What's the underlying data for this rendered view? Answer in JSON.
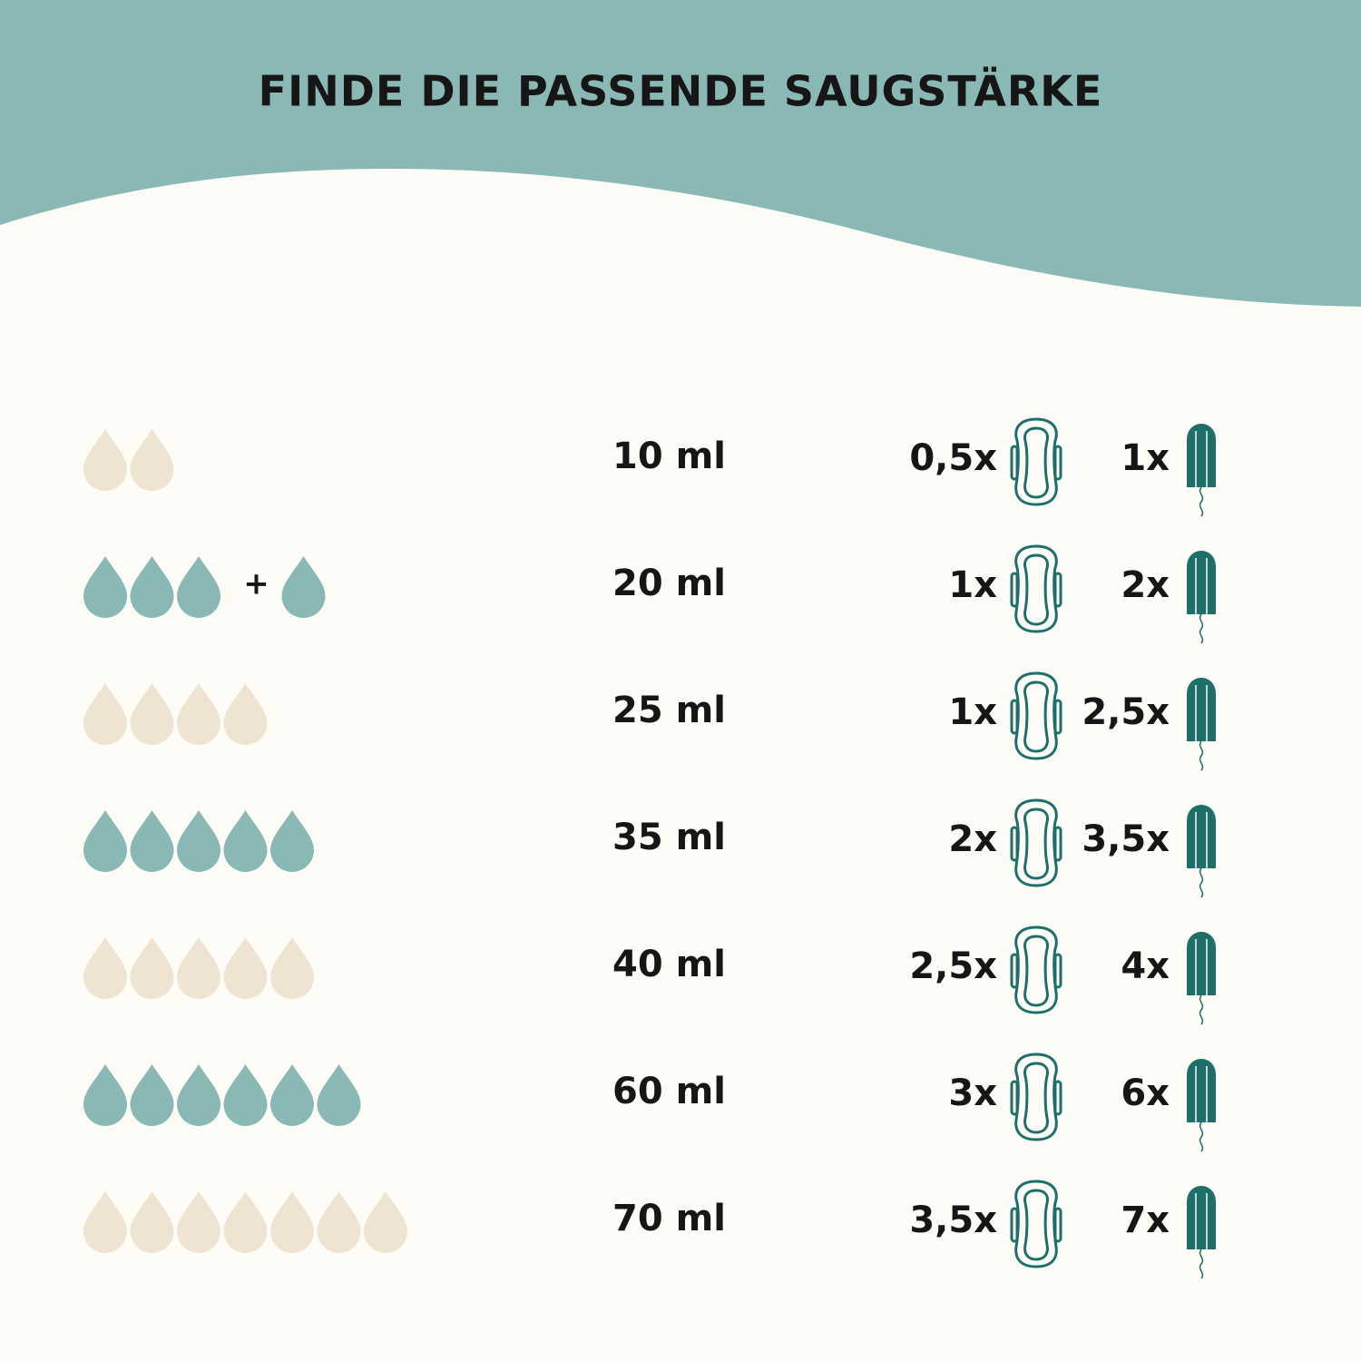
{
  "title": "FINDE DIE PASSENDE SAUGSTÄRKE",
  "rows": [
    {
      "drops": 2,
      "drop_color": "#efe4d2",
      "volume": "10 ml",
      "pads": "0,5x",
      "tampons": "1x"
    },
    {
      "drops": 3,
      "drop_color": "#89b8b5",
      "plus": "+",
      "extra_drops": 1,
      "volume": "20 ml",
      "pads": "1x",
      "tampons": "2x"
    },
    {
      "drops": 4,
      "drop_color": "#efe4d2",
      "volume": "25 ml",
      "pads": "1x",
      "tampons": "2,5x"
    },
    {
      "drops": 5,
      "drop_color": "#89b8b5",
      "volume": "35 ml",
      "pads": "2x",
      "tampons": "3,5x"
    },
    {
      "drops": 5,
      "drop_color": "#efe4d2",
      "volume": "40 ml",
      "pads": "2,5x",
      "tampons": "4x"
    },
    {
      "drops": 6,
      "drop_color": "#89b8b5",
      "volume": "60 ml",
      "pads": "3x",
      "tampons": "6x"
    },
    {
      "drops": 7,
      "drop_color": "#efe4d2",
      "volume": "70 ml",
      "pads": "3,5x",
      "tampons": "7x"
    }
  ]
}
